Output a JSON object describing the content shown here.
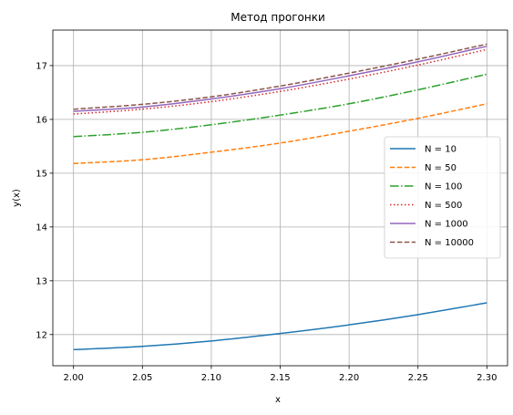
{
  "chart_data": {
    "type": "line",
    "title": "Метод прогонки",
    "xlabel": "x",
    "ylabel": "y(x)",
    "xlim": [
      1.985,
      2.315
    ],
    "ylim": [
      11.42,
      17.66
    ],
    "xticks": [
      "2.00",
      "2.05",
      "2.10",
      "2.15",
      "2.20",
      "2.25",
      "2.30"
    ],
    "yticks": [
      "12",
      "13",
      "14",
      "15",
      "16",
      "17"
    ],
    "grid": true,
    "legend_position": "center-right",
    "x": [
      2.0,
      2.05,
      2.1,
      2.15,
      2.2,
      2.25,
      2.3
    ],
    "series": [
      {
        "name": "N = 10",
        "color": "#1f77b4",
        "dash": "solid",
        "values": [
          11.72,
          11.78,
          11.88,
          12.02,
          12.18,
          12.37,
          12.59
        ]
      },
      {
        "name": "N = 50",
        "color": "#ff7f0e",
        "dash": "dashed",
        "values": [
          15.18,
          15.25,
          15.39,
          15.56,
          15.78,
          16.02,
          16.29
        ]
      },
      {
        "name": "N = 100",
        "color": "#2ca02c",
        "dash": "dashdot",
        "values": [
          15.68,
          15.76,
          15.9,
          16.08,
          16.29,
          16.55,
          16.84
        ]
      },
      {
        "name": "N = 500",
        "color": "#d62728",
        "dash": "dotted",
        "values": [
          16.1,
          16.19,
          16.33,
          16.52,
          16.75,
          17.01,
          17.3
        ]
      },
      {
        "name": "N = 1000",
        "color": "#9467bd",
        "dash": "solid",
        "values": [
          16.15,
          16.23,
          16.38,
          16.57,
          16.81,
          17.07,
          17.36
        ]
      },
      {
        "name": "N = 10000",
        "color": "#8c564b",
        "dash": "dashed",
        "values": [
          16.19,
          16.28,
          16.42,
          16.62,
          16.86,
          17.12,
          17.4
        ]
      }
    ]
  }
}
